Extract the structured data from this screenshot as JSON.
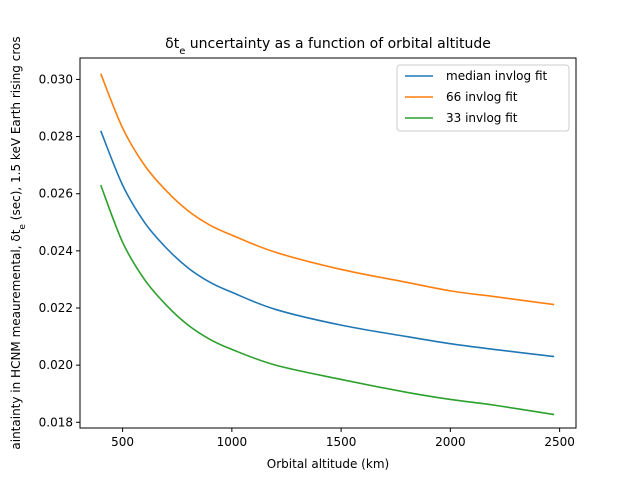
{
  "chart_data": {
    "type": "line",
    "title_prefix": "δt",
    "title_sub": "e",
    "title_suffix": " uncertainty as a function of orbital altitude",
    "xlabel": "Orbital altitude (km)",
    "ylabel_prefix": "aintainty in HCNM meauremental, δt",
    "ylabel_sub": "e",
    "ylabel_suffix": " (sec), 1.5 keV Earth rising cros",
    "xlim": [
      305,
      2575
    ],
    "ylim": [
      0.0178,
      0.03075
    ],
    "xticks": [
      500,
      1000,
      1500,
      2000,
      2500
    ],
    "xtick_labels": [
      "500",
      "1000",
      "1500",
      "2000",
      "2500"
    ],
    "yticks": [
      0.018,
      0.02,
      0.022,
      0.024,
      0.026,
      0.028,
      0.03
    ],
    "ytick_labels": [
      "0.018",
      "0.020",
      "0.022",
      "0.024",
      "0.026",
      "0.028",
      "0.030"
    ],
    "legend_position": "top-right",
    "grid": false,
    "x": [
      400,
      500,
      600,
      700,
      800,
      900,
      1000,
      1200,
      1500,
      1800,
      2000,
      2200,
      2475
    ],
    "series": [
      {
        "name": "median invlog fit",
        "color": "#1f77b4",
        "values": [
          0.0282,
          0.0263,
          0.025,
          0.0241,
          0.0234,
          0.0229,
          0.02255,
          0.02195,
          0.0214,
          0.021,
          0.02075,
          0.02055,
          0.0203
        ]
      },
      {
        "name": "66 invlog fit",
        "color": "#ff7f0e",
        "values": [
          0.0302,
          0.0283,
          0.027,
          0.0261,
          0.0254,
          0.0249,
          0.02455,
          0.02395,
          0.02335,
          0.0229,
          0.0226,
          0.0224,
          0.02212
        ]
      },
      {
        "name": "33 invlog fit",
        "color": "#2ca02c",
        "values": [
          0.0263,
          0.0243,
          0.023,
          0.0221,
          0.0214,
          0.0209,
          0.02055,
          0.02,
          0.0195,
          0.01905,
          0.0188,
          0.0186,
          0.01827
        ]
      }
    ]
  }
}
